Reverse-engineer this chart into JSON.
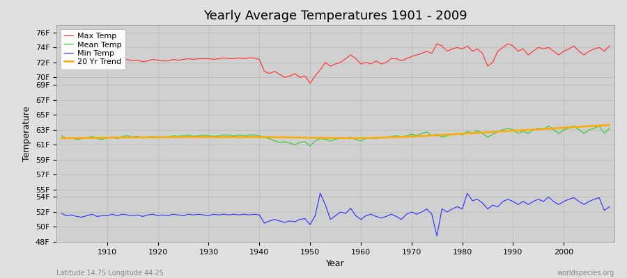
{
  "title": "Yearly Average Temperatures 1901 - 2009",
  "xlabel": "Year",
  "ylabel": "Temperature",
  "lat_lon_label": "Latitude 14.75 Longitude 44.25",
  "credit_label": "worldspecies.org",
  "bg_color": "#e0e0e0",
  "plot_bg_color": "#d0d0d0",
  "grid_color": "#bbbbbb",
  "years": [
    1901,
    1902,
    1903,
    1904,
    1905,
    1906,
    1907,
    1908,
    1909,
    1910,
    1911,
    1912,
    1913,
    1914,
    1915,
    1916,
    1917,
    1918,
    1919,
    1920,
    1921,
    1922,
    1923,
    1924,
    1925,
    1926,
    1927,
    1928,
    1929,
    1930,
    1931,
    1932,
    1933,
    1934,
    1935,
    1936,
    1937,
    1938,
    1939,
    1940,
    1941,
    1942,
    1943,
    1944,
    1945,
    1946,
    1947,
    1948,
    1949,
    1950,
    1951,
    1952,
    1953,
    1954,
    1955,
    1956,
    1957,
    1958,
    1959,
    1960,
    1961,
    1962,
    1963,
    1964,
    1965,
    1966,
    1967,
    1968,
    1969,
    1970,
    1971,
    1972,
    1973,
    1974,
    1975,
    1976,
    1977,
    1978,
    1979,
    1980,
    1981,
    1982,
    1983,
    1984,
    1985,
    1986,
    1987,
    1988,
    1989,
    1990,
    1991,
    1992,
    1993,
    1994,
    1995,
    1996,
    1997,
    1998,
    1999,
    2000,
    2001,
    2002,
    2003,
    2004,
    2005,
    2006,
    2007,
    2008,
    2009
  ],
  "max_temp": [
    72.2,
    72.0,
    72.1,
    72.3,
    72.1,
    72.2,
    72.3,
    72.2,
    72.1,
    72.3,
    72.2,
    72.2,
    72.3,
    72.4,
    72.2,
    72.3,
    72.1,
    72.2,
    72.4,
    72.3,
    72.2,
    72.2,
    72.4,
    72.3,
    72.4,
    72.5,
    72.4,
    72.5,
    72.5,
    72.5,
    72.4,
    72.5,
    72.6,
    72.5,
    72.5,
    72.6,
    72.5,
    72.6,
    72.6,
    72.4,
    70.8,
    70.5,
    70.8,
    70.4,
    70.0,
    70.2,
    70.5,
    70.0,
    70.2,
    69.2,
    70.2,
    71.0,
    72.0,
    71.5,
    71.8,
    72.0,
    72.5,
    73.0,
    72.5,
    71.8,
    72.0,
    71.8,
    72.2,
    71.8,
    72.0,
    72.5,
    72.5,
    72.2,
    72.5,
    72.8,
    73.0,
    73.2,
    73.5,
    73.2,
    74.5,
    74.2,
    73.5,
    73.8,
    74.0,
    73.8,
    74.2,
    73.5,
    73.8,
    73.2,
    71.5,
    72.0,
    73.5,
    74.0,
    74.5,
    74.2,
    73.5,
    73.8,
    73.0,
    73.5,
    74.0,
    73.8,
    74.0,
    73.5,
    73.0,
    73.5,
    73.8,
    74.2,
    73.5,
    73.0,
    73.5,
    73.8,
    74.0,
    73.5,
    74.2
  ],
  "mean_temp": [
    62.2,
    61.8,
    61.9,
    61.7,
    61.8,
    61.9,
    62.1,
    61.8,
    61.7,
    61.9,
    62.0,
    61.8,
    62.1,
    62.2,
    62.0,
    62.1,
    61.9,
    62.0,
    62.1,
    62.0,
    62.0,
    62.0,
    62.2,
    62.1,
    62.2,
    62.3,
    62.1,
    62.2,
    62.3,
    62.2,
    62.1,
    62.2,
    62.3,
    62.3,
    62.2,
    62.3,
    62.2,
    62.3,
    62.3,
    62.2,
    62.0,
    61.8,
    61.5,
    61.3,
    61.4,
    61.2,
    61.0,
    61.3,
    61.4,
    60.8,
    61.5,
    61.8,
    61.7,
    61.5,
    61.7,
    61.9,
    61.8,
    62.0,
    61.7,
    61.5,
    61.8,
    61.9,
    61.8,
    62.0,
    61.9,
    62.1,
    62.2,
    62.0,
    62.2,
    62.4,
    62.2,
    62.5,
    62.7,
    62.2,
    62.4,
    62.0,
    62.2,
    62.4,
    62.5,
    62.3,
    62.8,
    62.5,
    62.9,
    62.5,
    62.0,
    62.4,
    62.7,
    63.0,
    63.2,
    63.0,
    62.5,
    62.8,
    62.5,
    63.0,
    63.2,
    63.0,
    63.5,
    63.0,
    62.5,
    63.0,
    63.2,
    63.5,
    63.0,
    62.5,
    63.0,
    63.2,
    63.5,
    62.5,
    63.2
  ],
  "min_temp": [
    51.8,
    51.5,
    51.6,
    51.4,
    51.3,
    51.5,
    51.7,
    51.4,
    51.5,
    51.5,
    51.7,
    51.5,
    51.7,
    51.6,
    51.5,
    51.6,
    51.4,
    51.6,
    51.7,
    51.5,
    51.6,
    51.5,
    51.7,
    51.6,
    51.5,
    51.7,
    51.6,
    51.7,
    51.6,
    51.5,
    51.7,
    51.6,
    51.7,
    51.6,
    51.7,
    51.6,
    51.7,
    51.6,
    51.7,
    51.6,
    50.5,
    50.8,
    51.0,
    50.8,
    50.6,
    50.8,
    50.7,
    51.0,
    51.1,
    50.3,
    51.5,
    54.5,
    53.0,
    51.0,
    51.5,
    52.0,
    51.8,
    52.5,
    51.5,
    51.0,
    51.5,
    51.7,
    51.4,
    51.2,
    51.4,
    51.7,
    51.4,
    51.0,
    51.7,
    52.0,
    51.7,
    52.0,
    52.4,
    51.7,
    48.8,
    52.4,
    52.0,
    52.4,
    52.7,
    52.4,
    54.5,
    53.5,
    53.7,
    53.2,
    52.4,
    52.9,
    52.7,
    53.4,
    53.7,
    53.4,
    53.0,
    53.4,
    53.0,
    53.4,
    53.7,
    53.4,
    54.0,
    53.4,
    53.0,
    53.4,
    53.7,
    53.9,
    53.4,
    53.0,
    53.4,
    53.7,
    53.9,
    52.2,
    52.7
  ],
  "trend": [
    61.85,
    61.87,
    61.87,
    61.88,
    61.88,
    61.89,
    61.9,
    61.91,
    61.92,
    61.93,
    61.94,
    61.95,
    61.96,
    61.96,
    61.97,
    61.97,
    61.97,
    61.97,
    61.98,
    61.98,
    61.99,
    62.0,
    62.0,
    62.01,
    62.01,
    62.02,
    62.02,
    62.02,
    62.02,
    62.02,
    62.01,
    62.01,
    62.01,
    62.01,
    62.01,
    62.01,
    62.01,
    62.01,
    62.01,
    62.01,
    62.01,
    62.0,
    62.0,
    61.99,
    61.98,
    61.97,
    61.96,
    61.95,
    61.94,
    61.93,
    61.92,
    61.91,
    61.9,
    61.89,
    61.88,
    61.87,
    61.87,
    61.87,
    61.87,
    61.88,
    61.89,
    61.9,
    61.92,
    61.94,
    61.96,
    61.98,
    62.0,
    62.02,
    62.05,
    62.08,
    62.11,
    62.14,
    62.18,
    62.22,
    62.26,
    62.3,
    62.34,
    62.38,
    62.42,
    62.46,
    62.5,
    62.54,
    62.58,
    62.62,
    62.66,
    62.7,
    62.74,
    62.78,
    62.82,
    62.86,
    62.9,
    62.94,
    62.98,
    63.02,
    63.06,
    63.1,
    63.14,
    63.18,
    63.22,
    63.26,
    63.3,
    63.34,
    63.38,
    63.42,
    63.46,
    63.5,
    63.54,
    63.58,
    63.62
  ],
  "ylim_min": 48,
  "ylim_max": 77,
  "xlim_min": 1900,
  "xlim_max": 2010,
  "ytick_positions": [
    48,
    50,
    52,
    54,
    55,
    57,
    59,
    61,
    63,
    65,
    67,
    69,
    70,
    72,
    74,
    76
  ],
  "ytick_labels": [
    "48F",
    "50F",
    "52F",
    "54F",
    "55F",
    "57F",
    "59F",
    "61F",
    "63F",
    "65F",
    "67F",
    "69F",
    "70F",
    "72F",
    "74F",
    "76F"
  ],
  "xticks": [
    1910,
    1920,
    1930,
    1940,
    1950,
    1960,
    1970,
    1980,
    1990,
    2000
  ],
  "max_color": "#ff3333",
  "mean_color": "#33cc33",
  "min_color": "#3333ff",
  "trend_color": "#ffaa00",
  "legend_labels": [
    "Max Temp",
    "Mean Temp",
    "Min Temp",
    "20 Yr Trend"
  ],
  "title_fontsize": 13,
  "axis_label_fontsize": 9,
  "tick_fontsize": 8,
  "legend_fontsize": 8
}
